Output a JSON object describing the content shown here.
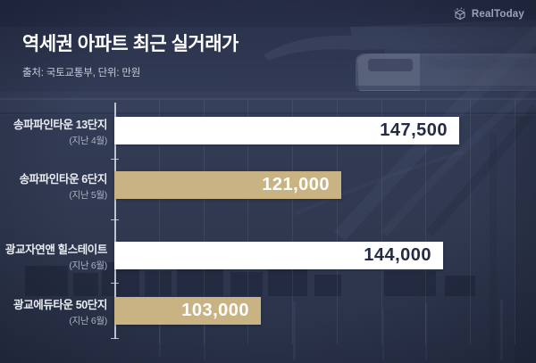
{
  "logo": {
    "brand": "RealToday",
    "icon": "cube-logo-icon"
  },
  "header": {
    "title": "역세권 아파트 최근 실거래가",
    "subtitle": "출처: 국토교통부, 단위: 만원"
  },
  "colors": {
    "background": "#303950",
    "bar_white": "#ffffff",
    "bar_tan": "#c9b383",
    "value_on_white": "#232c42",
    "value_on_tan": "#ffffff",
    "axis_line": "#d6dce8",
    "title_text": "#ffffff",
    "subtitle_text": "#c7cdda",
    "label_text": "#e9ecf3",
    "sublabel_text": "#a9b1c3",
    "logo_text": "#9aa3b8"
  },
  "chart_data": {
    "type": "bar",
    "orientation": "horizontal",
    "title": "역세권 아파트 최근 실거래가",
    "source_note": "출처: 국토교통부, 단위: 만원",
    "unit": "만원",
    "axis_min": 70000,
    "axis_max": 160000,
    "gridline_step": 10000,
    "grid": true,
    "legend": false,
    "categories": [
      "송파파인타운 13단지",
      "송파파인타운 6단지",
      "광교자연앤 힐스테이트",
      "광교에듀타운 50단지"
    ],
    "rows": [
      {
        "label": "송파파인타운 13단지",
        "sublabel": "(지난 4월)",
        "value": 147500,
        "value_label": "147,500",
        "color_key": "bar_white"
      },
      {
        "label": "송파파인타운 6단지",
        "sublabel": "(지난 5월)",
        "value": 121000,
        "value_label": "121,000",
        "color_key": "bar_tan"
      },
      {
        "label": "광교자연앤 힐스테이트",
        "sublabel": "(지난 6월)",
        "value": 144000,
        "value_label": "144,000",
        "color_key": "bar_white"
      },
      {
        "label": "광교에듀타운 50단지",
        "sublabel": "(지난 6월)",
        "value": 103000,
        "value_label": "103,000",
        "color_key": "bar_tan"
      }
    ]
  }
}
